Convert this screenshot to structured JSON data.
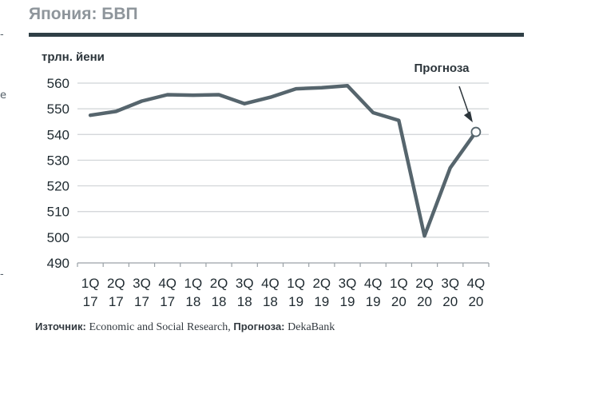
{
  "header": {
    "title": "Япония: БВП"
  },
  "footer": {
    "source_label": "Източник:",
    "source_text": "Economic and Social Research,",
    "forecast_label": "Прогноза:",
    "forecast_text": "DekaBank"
  },
  "colors": {
    "line": "#56656d",
    "grid": "#cfd3d6",
    "rule": "#2f3f46",
    "title": "#8e959b"
  },
  "chart_data": {
    "type": "line",
    "title": "Япония: БВП",
    "ylabel": "трлн. йени",
    "xlabel": "",
    "ylim": [
      490,
      560
    ],
    "yticks": [
      490,
      500,
      510,
      520,
      530,
      540,
      550,
      560
    ],
    "grid": true,
    "categories": [
      [
        "1Q",
        "17"
      ],
      [
        "2Q",
        "17"
      ],
      [
        "3Q",
        "17"
      ],
      [
        "4Q",
        "17"
      ],
      [
        "1Q",
        "18"
      ],
      [
        "2Q",
        "18"
      ],
      [
        "3Q",
        "18"
      ],
      [
        "4Q",
        "18"
      ],
      [
        "1Q",
        "19"
      ],
      [
        "2Q",
        "19"
      ],
      [
        "3Q",
        "19"
      ],
      [
        "4Q",
        "19"
      ],
      [
        "1Q",
        "20"
      ],
      [
        "2Q",
        "20"
      ],
      [
        "3Q",
        "20"
      ],
      [
        "4Q",
        "20"
      ]
    ],
    "series": [
      {
        "name": "БВП",
        "values": [
          547.5,
          549,
          553,
          555.5,
          555.3,
          555.5,
          552,
          554.5,
          557.8,
          558.2,
          559,
          548.5,
          545.5,
          500.5,
          527,
          541
        ]
      }
    ],
    "annotations": [
      {
        "text": "Прогноза",
        "category_index": 15
      }
    ]
  }
}
